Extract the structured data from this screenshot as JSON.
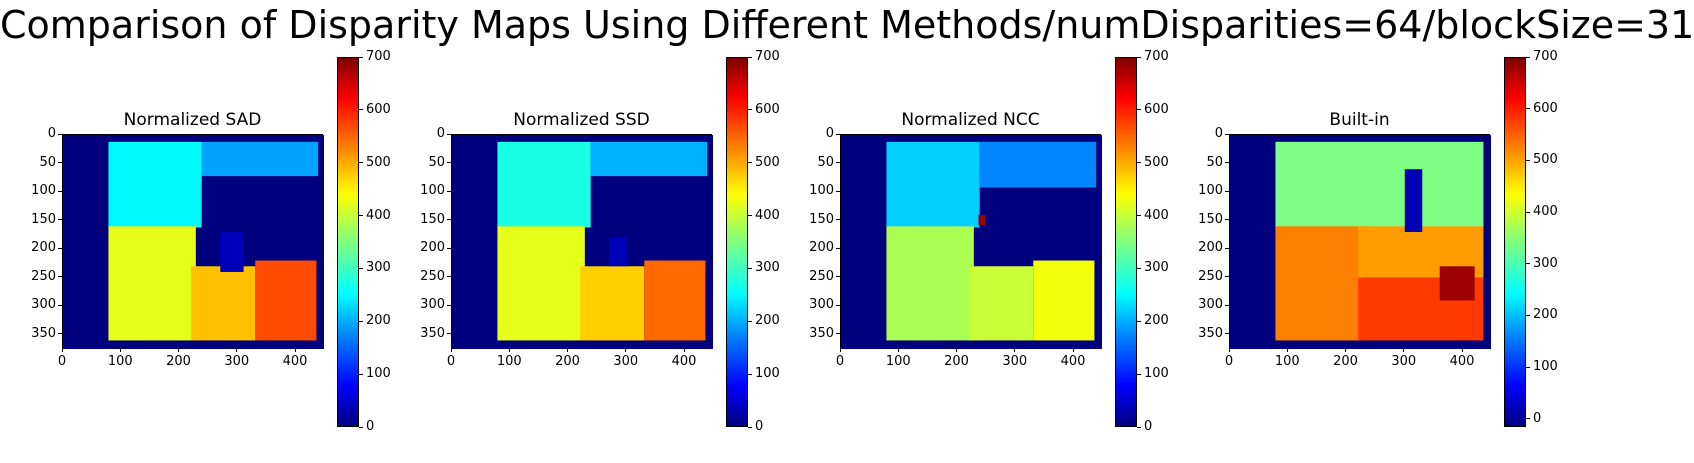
{
  "figure": {
    "title": "Comparison of Disparity Maps Using Different Methods/numDisparities=64/blockSize=31"
  },
  "colormap": {
    "name": "jet",
    "stops": [
      "#00007f",
      "#0000ff",
      "#007fff",
      "#00ffff",
      "#7fff7f",
      "#ffff00",
      "#ff7f00",
      "#ff0000",
      "#7f0000"
    ]
  },
  "chart_data": [
    {
      "type": "heatmap",
      "title": "Normalized SAD",
      "xlim": [
        0,
        448
      ],
      "ylim": [
        375,
        0
      ],
      "x_ticks": [
        0,
        100,
        200,
        300,
        400
      ],
      "y_ticks": [
        0,
        50,
        100,
        150,
        200,
        250,
        300,
        350
      ],
      "colorbar": {
        "range": [
          0,
          700
        ],
        "ticks": [
          0,
          100,
          200,
          300,
          400,
          500,
          600,
          700
        ]
      },
      "valid_region": {
        "x": [
          78,
          435
        ],
        "y": [
          12,
          358
        ]
      },
      "background_value": 0
    },
    {
      "type": "heatmap",
      "title": "Normalized SSD",
      "xlim": [
        0,
        448
      ],
      "ylim": [
        375,
        0
      ],
      "x_ticks": [
        0,
        100,
        200,
        300,
        400
      ],
      "y_ticks": [
        0,
        50,
        100,
        150,
        200,
        250,
        300,
        350
      ],
      "colorbar": {
        "range": [
          0,
          700
        ],
        "ticks": [
          0,
          100,
          200,
          300,
          400,
          500,
          600,
          700
        ]
      },
      "valid_region": {
        "x": [
          78,
          435
        ],
        "y": [
          12,
          358
        ]
      },
      "background_value": 0
    },
    {
      "type": "heatmap",
      "title": "Normalized NCC",
      "xlim": [
        0,
        448
      ],
      "ylim": [
        375,
        0
      ],
      "x_ticks": [
        0,
        100,
        200,
        300,
        400
      ],
      "y_ticks": [
        0,
        50,
        100,
        150,
        200,
        250,
        300,
        350
      ],
      "colorbar": {
        "range": [
          0,
          700
        ],
        "ticks": [
          0,
          100,
          200,
          300,
          400,
          500,
          600,
          700
        ]
      },
      "valid_region": {
        "x": [
          78,
          435
        ],
        "y": [
          12,
          358
        ]
      },
      "background_value": 0
    },
    {
      "type": "heatmap",
      "title": "Built-in",
      "xlim": [
        0,
        448
      ],
      "ylim": [
        375,
        0
      ],
      "x_ticks": [
        0,
        100,
        200,
        300,
        400
      ],
      "y_ticks": [
        0,
        50,
        100,
        150,
        200,
        250,
        300,
        350
      ],
      "colorbar": {
        "range": [
          -16,
          700
        ],
        "ticks": [
          0,
          100,
          200,
          300,
          400,
          500,
          600,
          700
        ]
      },
      "valid_region": {
        "x": [
          78,
          435
        ],
        "y": [
          12,
          358
        ]
      },
      "background_value": -16
    }
  ]
}
